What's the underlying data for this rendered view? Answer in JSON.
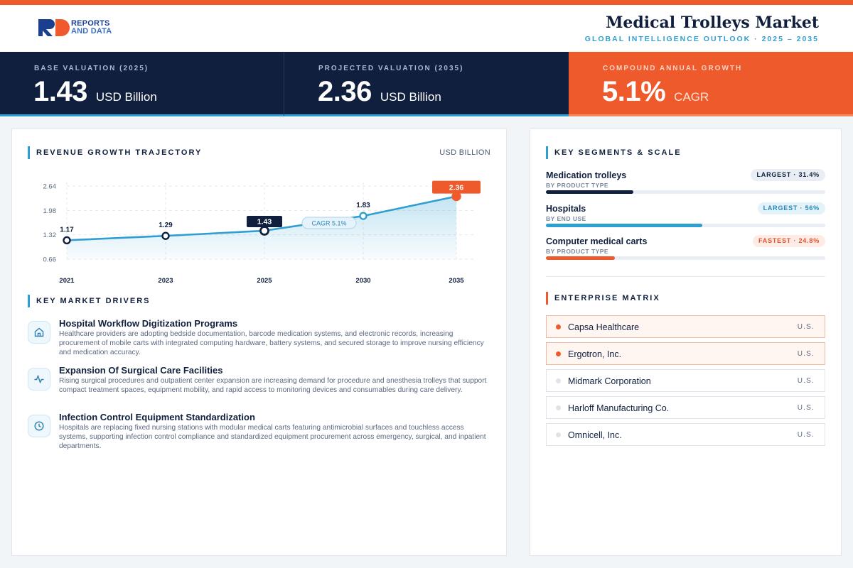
{
  "brand": {
    "line1": "REPORTS",
    "line2": "AND DATA"
  },
  "header": {
    "title": "Medical Trolleys Market",
    "subtitle": "GLOBAL INTELLIGENCE OUTLOOK  ·  2025 – 2035"
  },
  "kpis": [
    {
      "label": "BASE VALUATION (2025)",
      "value": "1.43",
      "unit": "USD Billion"
    },
    {
      "label": "PROJECTED VALUATION (2035)",
      "value": "2.36",
      "unit": "USD Billion"
    },
    {
      "label": "COMPOUND ANNUAL GROWTH",
      "value": "5.1%",
      "unit": "CAGR"
    }
  ],
  "revenue": {
    "title": "REVENUE GROWTH TRAJECTORY",
    "unit": "USD BILLION"
  },
  "chart_data": {
    "type": "area",
    "title": "REVENUE GROWTH TRAJECTORY",
    "ylabel": "USD BILLION",
    "x": [
      "2021",
      "2023",
      "2025",
      "2030",
      "2035"
    ],
    "values": [
      1.17,
      1.29,
      1.43,
      1.83,
      2.36
    ],
    "value_labels": [
      "1.17",
      "1.29",
      "1.43",
      "1.83",
      "2.36"
    ],
    "yticks": [
      "2.64",
      "1.98",
      "1.32",
      "0.66"
    ],
    "ylim": [
      0.66,
      2.64
    ],
    "annotation": "CAGR 5.1%",
    "highlight_colors": {
      "base": "#0f1f3d",
      "projected": "#ee5a2b",
      "line": "#2e9fd0"
    }
  },
  "drivers": {
    "title": "KEY MARKET DRIVERS",
    "items": [
      {
        "icon": "hospital-icon",
        "title": "Hospital Workflow Digitization Programs",
        "text": "Healthcare providers are adopting bedside documentation, barcode medication systems, and electronic records, increasing procurement of mobile carts with integrated computing hardware, battery systems, and secured storage to improve nursing efficiency and medication accuracy."
      },
      {
        "icon": "activity-icon",
        "title": "Expansion Of Surgical Care Facilities",
        "text": "Rising surgical procedures and outpatient center expansion are increasing demand for procedure and anesthesia trolleys that support compact treatment spaces, equipment mobility, and rapid access to monitoring devices and consumables during care delivery."
      },
      {
        "icon": "clock-icon",
        "title": "Infection Control Equipment Standardization",
        "text": "Hospitals are replacing fixed nursing stations with modular medical carts featuring antimicrobial surfaces and touchless access systems, supporting infection control compliance and standardized equipment procurement across emergency, surgical, and inpatient departments."
      }
    ]
  },
  "segments": {
    "title": "KEY SEGMENTS & SCALE",
    "items": [
      {
        "name": "Medication trolleys",
        "sub": "BY PRODUCT TYPE",
        "badge": "LARGEST · 31.4%",
        "share": 0.314,
        "color": "#0f1f3d"
      },
      {
        "name": "Hospitals",
        "sub": "BY END USE",
        "badge": "LARGEST · 56%",
        "share": 0.56,
        "color": "#2e9fd0"
      },
      {
        "name": "Computer medical carts",
        "sub": "BY PRODUCT TYPE",
        "badge": "FASTEST · 24.8%",
        "share": 0.248,
        "color": "#ee5a2b"
      }
    ]
  },
  "enterprise": {
    "title": "ENTERPRISE MATRIX",
    "items": [
      {
        "name": "Capsa Healthcare",
        "country": "U.S.",
        "highlight": true
      },
      {
        "name": "Ergotron, Inc.",
        "country": "U.S.",
        "highlight": true
      },
      {
        "name": "Midmark Corporation",
        "country": "U.S.",
        "highlight": false
      },
      {
        "name": "Harloff Manufacturing Co.",
        "country": "U.S.",
        "highlight": false
      },
      {
        "name": "Omnicell, Inc.",
        "country": "U.S.",
        "highlight": false
      }
    ]
  }
}
